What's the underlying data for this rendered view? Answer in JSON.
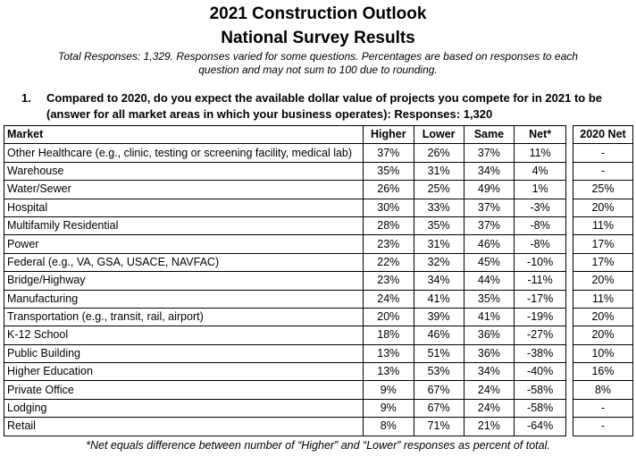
{
  "header": {
    "title_line1": "2021 Construction Outlook",
    "title_line2": "National Survey Results",
    "note_line1": "Total Responses: 1,329. Responses varied for some questions. Percentages are based on responses to each",
    "note_line2": "question and may not sum to 100 due to rounding."
  },
  "question": {
    "number": "1.",
    "line1": "Compared to 2020, do you expect the available dollar value of projects you compete for in 2021 to be",
    "line2": "(answer for all market areas in which your business operates): Responses: 1,320"
  },
  "table": {
    "columns": [
      "Market",
      "Higher",
      "Lower",
      "Same",
      "Net*"
    ],
    "prev_column": "2020 Net",
    "rows": [
      {
        "market": "Other Healthcare (e.g., clinic, testing or screening facility, medical lab)",
        "higher": "37%",
        "lower": "26%",
        "same": "37%",
        "net": "11%",
        "prev": "-"
      },
      {
        "market": "Warehouse",
        "higher": "35%",
        "lower": "31%",
        "same": "34%",
        "net": "4%",
        "prev": "-"
      },
      {
        "market": "Water/Sewer",
        "higher": "26%",
        "lower": "25%",
        "same": "49%",
        "net": "1%",
        "prev": "25%"
      },
      {
        "market": "Hospital",
        "higher": "30%",
        "lower": "33%",
        "same": "37%",
        "net": "-3%",
        "prev": "20%"
      },
      {
        "market": "Multifamily Residential",
        "higher": "28%",
        "lower": "35%",
        "same": "37%",
        "net": "-8%",
        "prev": "11%"
      },
      {
        "market": "Power",
        "higher": "23%",
        "lower": "31%",
        "same": "46%",
        "net": "-8%",
        "prev": "17%"
      },
      {
        "market": "Federal (e.g., VA, GSA, USACE, NAVFAC)",
        "higher": "22%",
        "lower": "32%",
        "same": "45%",
        "net": "-10%",
        "prev": "17%"
      },
      {
        "market": "Bridge/Highway",
        "higher": "23%",
        "lower": "34%",
        "same": "44%",
        "net": "-11%",
        "prev": "20%"
      },
      {
        "market": "Manufacturing",
        "higher": "24%",
        "lower": "41%",
        "same": "35%",
        "net": "-17%",
        "prev": "11%"
      },
      {
        "market": "Transportation (e.g., transit, rail, airport)",
        "higher": "20%",
        "lower": "39%",
        "same": "41%",
        "net": "-19%",
        "prev": "20%"
      },
      {
        "market": "K-12 School",
        "higher": "18%",
        "lower": "46%",
        "same": "36%",
        "net": "-27%",
        "prev": "20%"
      },
      {
        "market": "Public Building",
        "higher": "13%",
        "lower": "51%",
        "same": "36%",
        "net": "-38%",
        "prev": "10%"
      },
      {
        "market": "Higher Education",
        "higher": "13%",
        "lower": "53%",
        "same": "34%",
        "net": "-40%",
        "prev": "16%"
      },
      {
        "market": "Private Office",
        "higher": "9%",
        "lower": "67%",
        "same": "24%",
        "net": "-58%",
        "prev": "8%"
      },
      {
        "market": "Lodging",
        "higher": "9%",
        "lower": "67%",
        "same": "24%",
        "net": "-58%",
        "prev": "-"
      },
      {
        "market": "Retail",
        "higher": "8%",
        "lower": "71%",
        "same": "21%",
        "net": "-64%",
        "prev": "-"
      }
    ]
  },
  "footnote": "*Net equals difference between number of “Higher” and “Lower” responses as percent of total."
}
